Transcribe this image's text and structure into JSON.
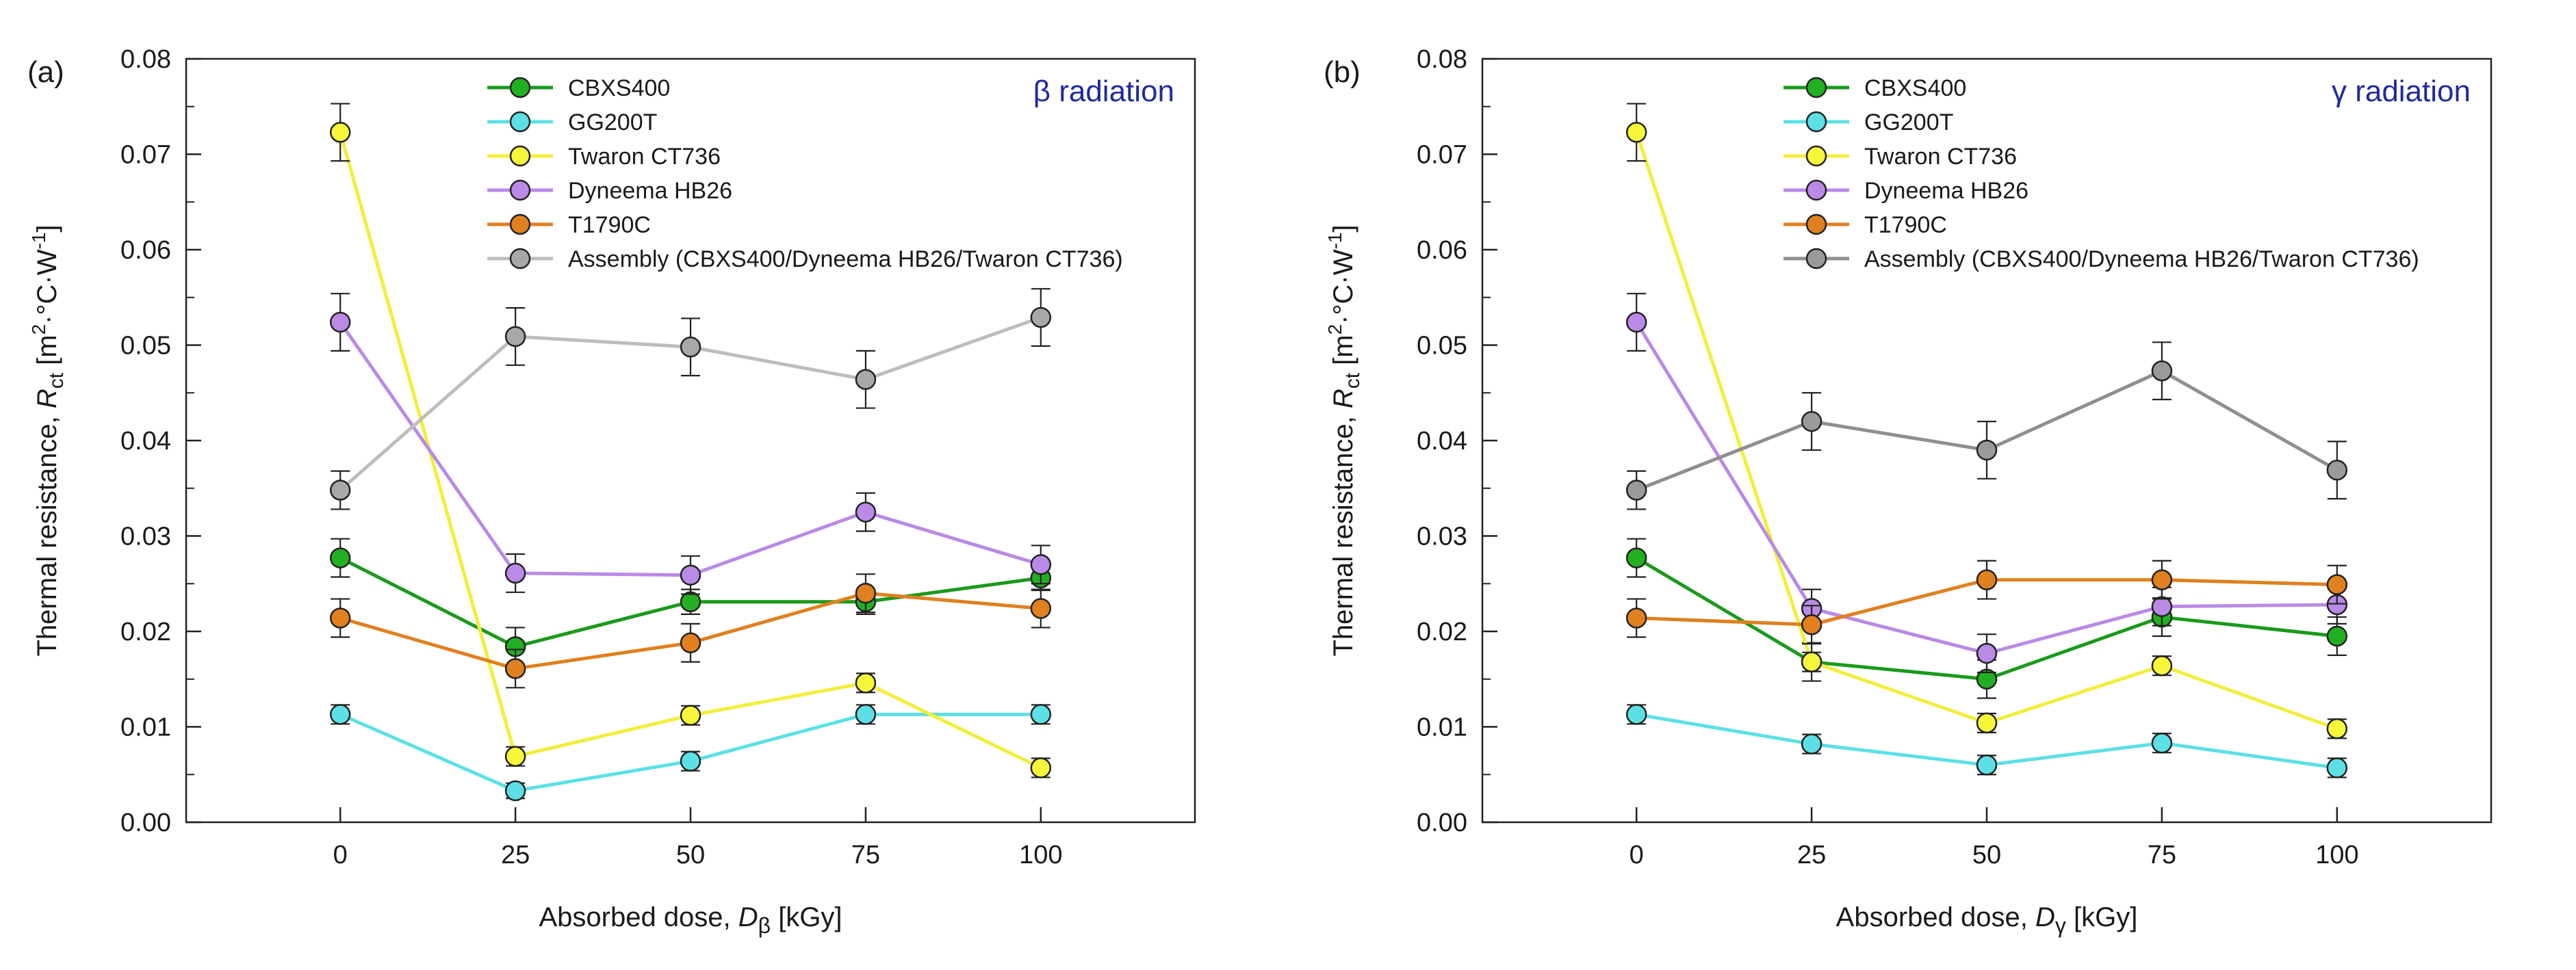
{
  "figure": {
    "description_none": "",
    "panels_count": 2
  },
  "chart_data": [
    {
      "type": "line",
      "panel_label": "(a)",
      "annotation": "β radiation",
      "annotation_color": "#1f2a9e",
      "xlabel_prefix": "Absorbed dose, ",
      "xlabel_symbol": "D",
      "xlabel_subscript": "β",
      "xlabel_suffix": " [kGy]",
      "ylabel_prefix": "Thermal resistance, ",
      "ylabel_symbol": "R",
      "ylabel_subscript": "ct",
      "ylabel_unit_open": " [m",
      "ylabel_unit_sup1": "2",
      "ylabel_unit_mid": "·°C·W",
      "ylabel_unit_sup2": "-1",
      "ylabel_unit_close": "]",
      "x": [
        0,
        25,
        50,
        75,
        100
      ],
      "x_ticks": [
        0,
        25,
        50,
        75,
        100
      ],
      "xlim": [
        -22,
        122
      ],
      "ylim": [
        0,
        0.08
      ],
      "y_ticks": [
        0.0,
        0.01,
        0.02,
        0.03,
        0.04,
        0.05,
        0.06,
        0.07,
        0.08
      ],
      "y_tick_labels": [
        "0.00",
        "0.01",
        "0.02",
        "0.03",
        "0.04",
        "0.05",
        "0.06",
        "0.07",
        "0.08"
      ],
      "grid": false,
      "legend_position": "top-center",
      "series": [
        {
          "name": "CBXS400",
          "line_color": "#1a9a1a",
          "marker_color": "#22b022",
          "values": [
            0.0277,
            0.0184,
            0.0231,
            0.0231,
            0.0256
          ],
          "errors": [
            0.002,
            0.002,
            0.0013,
            0.0013,
            0.0013
          ]
        },
        {
          "name": "GG200T",
          "line_color": "#5ce0e6",
          "marker_color": "#5ce0e6",
          "values": [
            0.0113,
            0.0033,
            0.0064,
            0.0113,
            0.0113
          ],
          "errors": [
            0.001,
            0.0008,
            0.001,
            0.001,
            0.001
          ]
        },
        {
          "name": "Twaron CT736",
          "line_color": "#f2ee3c",
          "marker_color": "#f7f73a",
          "values": [
            0.0723,
            0.0069,
            0.0112,
            0.0146,
            0.0057
          ],
          "errors": [
            0.003,
            0.001,
            0.001,
            0.001,
            0.001
          ]
        },
        {
          "name": "Dyneema HB26",
          "line_color": "#b98ae6",
          "marker_color": "#b98ae6",
          "values": [
            0.0524,
            0.0261,
            0.0259,
            0.0325,
            0.027
          ],
          "errors": [
            0.003,
            0.002,
            0.002,
            0.002,
            0.002
          ]
        },
        {
          "name": "T1790C",
          "line_color": "#e0801e",
          "marker_color": "#e0801e",
          "values": [
            0.0214,
            0.0161,
            0.0188,
            0.024,
            0.0224
          ],
          "errors": [
            0.002,
            0.002,
            0.002,
            0.002,
            0.002
          ]
        },
        {
          "name": "Assembly (CBXS400/Dyneema HB26/Twaron CT736)",
          "line_color": "#bdbdbd",
          "marker_color": "#a8a8a8",
          "values": [
            0.0348,
            0.0509,
            0.0498,
            0.0464,
            0.0529
          ],
          "errors": [
            0.002,
            0.003,
            0.003,
            0.003,
            0.003
          ]
        }
      ]
    },
    {
      "type": "line",
      "panel_label": "(b)",
      "annotation": "γ radiation",
      "annotation_color": "#1f2a9e",
      "xlabel_prefix": "Absorbed dose, ",
      "xlabel_symbol": "D",
      "xlabel_subscript": "γ",
      "xlabel_suffix": " [kGy]",
      "ylabel_prefix": "Thermal resistance, ",
      "ylabel_symbol": "R",
      "ylabel_subscript": "ct",
      "ylabel_unit_open": " [m",
      "ylabel_unit_sup1": "2",
      "ylabel_unit_mid": "·°C·W",
      "ylabel_unit_sup2": "-1",
      "ylabel_unit_close": "]",
      "x": [
        0,
        25,
        50,
        75,
        100
      ],
      "x_ticks": [
        0,
        25,
        50,
        75,
        100
      ],
      "xlim": [
        -22,
        122
      ],
      "ylim": [
        0,
        0.08
      ],
      "y_ticks": [
        0.0,
        0.01,
        0.02,
        0.03,
        0.04,
        0.05,
        0.06,
        0.07,
        0.08
      ],
      "y_tick_labels": [
        "0.00",
        "0.01",
        "0.02",
        "0.03",
        "0.04",
        "0.05",
        "0.06",
        "0.07",
        "0.08"
      ],
      "grid": false,
      "legend_position": "top-center",
      "series": [
        {
          "name": "CBXS400",
          "line_color": "#1a9a1a",
          "marker_color": "#22b022",
          "values": [
            0.0277,
            0.0168,
            0.015,
            0.0215,
            0.0195
          ],
          "errors": [
            0.002,
            0.002,
            0.002,
            0.002,
            0.002
          ]
        },
        {
          "name": "GG200T",
          "line_color": "#5ce0e6",
          "marker_color": "#5ce0e6",
          "values": [
            0.0113,
            0.0082,
            0.006,
            0.0083,
            0.0057
          ],
          "errors": [
            0.001,
            0.001,
            0.001,
            0.001,
            0.001
          ]
        },
        {
          "name": "Twaron CT736",
          "line_color": "#f2ee3c",
          "marker_color": "#f7f73a",
          "values": [
            0.0723,
            0.0168,
            0.0104,
            0.0164,
            0.0098
          ],
          "errors": [
            0.003,
            0.001,
            0.001,
            0.001,
            0.001
          ]
        },
        {
          "name": "Dyneema HB26",
          "line_color": "#b98ae6",
          "marker_color": "#b98ae6",
          "values": [
            0.0524,
            0.0224,
            0.0177,
            0.0226,
            0.0228
          ],
          "errors": [
            0.003,
            0.002,
            0.002,
            0.002,
            0.002
          ]
        },
        {
          "name": "T1790C",
          "line_color": "#e0801e",
          "marker_color": "#e0801e",
          "values": [
            0.0214,
            0.0207,
            0.0254,
            0.0254,
            0.0249
          ],
          "errors": [
            0.002,
            0.002,
            0.002,
            0.002,
            0.002
          ]
        },
        {
          "name": "Assembly (CBXS400/Dyneema HB26/Twaron CT736)",
          "line_color": "#8f8f8f",
          "marker_color": "#9a9a9a",
          "values": [
            0.0348,
            0.042,
            0.039,
            0.0473,
            0.0369
          ],
          "errors": [
            0.002,
            0.003,
            0.003,
            0.003,
            0.003
          ]
        }
      ]
    }
  ]
}
